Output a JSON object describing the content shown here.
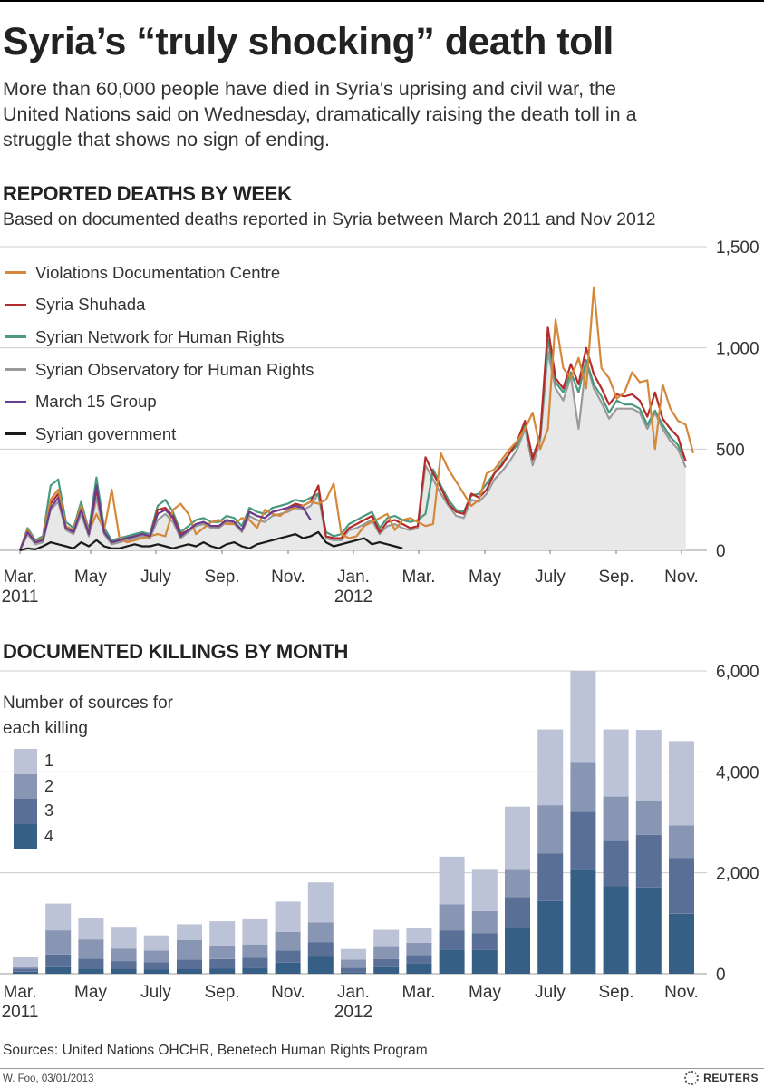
{
  "header": {
    "title": "Syria’s “truly shocking” death toll",
    "subtitle": "More than 60,000 people have died in Syria's uprising and civil war, the United Nations said on Wednesday, dramatically raising the death toll in a struggle that shows no sign of ending."
  },
  "colors": {
    "vdc": "#d4883a",
    "shuhada": "#b52a2a",
    "snhr": "#4a9a7f",
    "sohr": "#9a9a9a",
    "march15": "#6a3d8e",
    "government": "#1a1a1a",
    "fill": "#e8e8e8",
    "src1": "#bcc3d6",
    "src2": "#8896b4",
    "src3": "#5a6f96",
    "src4": "#365f86",
    "grid": "#cccccc"
  },
  "x_ticks": [
    {
      "label": "Mar.",
      "year": "2011"
    },
    {
      "label": "May",
      "year": ""
    },
    {
      "label": "July",
      "year": ""
    },
    {
      "label": "Sep.",
      "year": ""
    },
    {
      "label": "Nov.",
      "year": ""
    },
    {
      "label": "Jan.",
      "year": "2012"
    },
    {
      "label": "Mar.",
      "year": ""
    },
    {
      "label": "May",
      "year": ""
    },
    {
      "label": "July",
      "year": ""
    },
    {
      "label": "Sep.",
      "year": ""
    },
    {
      "label": "Nov.",
      "year": ""
    }
  ],
  "chart_data": [
    {
      "type": "line",
      "title": "REPORTED DEATHS BY WEEK",
      "subtitle": "Based on documented deaths reported in Syria between March 2011 and Nov 2012",
      "x_unit": "week",
      "ylim": [
        0,
        1500
      ],
      "yticks": [
        "1,500",
        "1,000",
        "500",
        "0"
      ],
      "ytick_values": [
        1500,
        1000,
        500,
        0
      ],
      "grid": true,
      "legend_position": "top-left",
      "area_series": "Syrian Observatory for Human Rights",
      "series": [
        {
          "name": "Violations Documentation Centre",
          "color_key": "vdc",
          "values": [
            0,
            100,
            40,
            60,
            250,
            300,
            120,
            100,
            220,
            90,
            180,
            100,
            300,
            60,
            40,
            50,
            60,
            70,
            80,
            70,
            200,
            230,
            180,
            80,
            110,
            140,
            150,
            130,
            130,
            160,
            150,
            110,
            200,
            180,
            170,
            200,
            210,
            220,
            240,
            230,
            250,
            330,
            80,
            60,
            70,
            120,
            140,
            160,
            180,
            100,
            150,
            160,
            140,
            120,
            130,
            480,
            400,
            340,
            280,
            220,
            250,
            380,
            400,
            450,
            500,
            540,
            600,
            680,
            500,
            600,
            1140,
            900,
            850,
            950,
            800,
            1300,
            900,
            850,
            750,
            780,
            880,
            830,
            840,
            500,
            820,
            700,
            640,
            620,
            480
          ]
        },
        {
          "name": "Syria Shuhada",
          "color_key": "shuhada",
          "values": [
            0,
            100,
            40,
            50,
            230,
            280,
            110,
            90,
            210,
            80,
            300,
            90,
            40,
            50,
            60,
            70,
            80,
            70,
            200,
            210,
            170,
            80,
            100,
            130,
            140,
            120,
            120,
            150,
            140,
            100,
            190,
            170,
            160,
            190,
            200,
            210,
            230,
            220,
            240,
            320,
            70,
            60,
            60,
            110,
            130,
            150,
            170,
            90,
            140,
            150,
            130,
            110,
            120,
            460,
            380,
            310,
            230,
            190,
            180,
            280,
            260,
            300,
            380,
            420,
            480,
            540,
            640,
            450,
            570,
            1100,
            850,
            800,
            920,
            820,
            1000,
            870,
            800,
            720,
            770,
            760,
            770,
            740,
            660,
            780,
            650,
            600,
            560,
            440
          ]
        },
        {
          "name": "Syrian Network for Human Rights",
          "color_key": "snhr",
          "values": [
            0,
            110,
            50,
            70,
            320,
            350,
            140,
            110,
            240,
            100,
            360,
            110,
            50,
            60,
            70,
            80,
            90,
            80,
            220,
            250,
            190,
            90,
            120,
            150,
            160,
            140,
            140,
            170,
            160,
            120,
            210,
            190,
            180,
            210,
            220,
            230,
            250,
            240,
            260,
            280,
            90,
            70,
            80,
            130,
            150,
            170,
            190,
            110,
            160,
            170,
            150,
            140,
            150,
            180,
            400,
            320,
            250,
            200,
            190,
            270,
            280,
            330,
            380,
            430,
            480,
            520,
            620,
            460,
            560,
            1040,
            830,
            780,
            880,
            780,
            940,
            820,
            760,
            680,
            740,
            720,
            720,
            700,
            620,
            690,
            620,
            560,
            520,
            440
          ]
        },
        {
          "name": "Syrian Observatory for Human Rights",
          "color_key": "sohr",
          "values": [
            0,
            80,
            30,
            40,
            200,
            240,
            100,
            80,
            180,
            70,
            260,
            80,
            30,
            40,
            50,
            60,
            70,
            60,
            150,
            180,
            140,
            60,
            90,
            120,
            130,
            110,
            110,
            140,
            130,
            90,
            170,
            150,
            140,
            170,
            180,
            190,
            210,
            200,
            220,
            280,
            60,
            50,
            50,
            100,
            110,
            130,
            150,
            80,
            120,
            130,
            110,
            100,
            110,
            420,
            350,
            280,
            220,
            170,
            160,
            250,
            240,
            280,
            350,
            390,
            440,
            500,
            600,
            420,
            540,
            980,
            800,
            740,
            860,
            600,
            930,
            800,
            730,
            650,
            700,
            700,
            700,
            680,
            600,
            680,
            600,
            540,
            500,
            410
          ]
        },
        {
          "name": "March 15 Group",
          "color_key": "march15",
          "values": [
            0,
            90,
            40,
            50,
            210,
            260,
            110,
            90,
            200,
            80,
            320,
            90,
            40,
            50,
            60,
            70,
            80,
            70,
            180,
            200,
            160,
            70,
            100,
            130,
            140,
            120,
            120,
            150,
            140,
            100,
            190,
            170,
            160,
            190,
            200,
            210,
            220,
            210,
            150
          ]
        },
        {
          "name": "Syrian government",
          "color_key": "government",
          "values": [
            0,
            10,
            5,
            20,
            40,
            30,
            20,
            10,
            40,
            20,
            50,
            20,
            10,
            10,
            20,
            30,
            20,
            20,
            30,
            20,
            10,
            20,
            30,
            20,
            40,
            20,
            10,
            30,
            40,
            20,
            10,
            30,
            40,
            50,
            60,
            70,
            80,
            60,
            70,
            90,
            40,
            20,
            30,
            40,
            50,
            60,
            30,
            40,
            30,
            20,
            10
          ]
        }
      ]
    },
    {
      "type": "bar",
      "stacked": true,
      "title": "DOCUMENTED KILLINGS BY MONTH",
      "legend_title": "Number of sources for each killing",
      "ylim": [
        0,
        6000
      ],
      "yticks": [
        "6,000",
        "4,000",
        "2,000",
        "0"
      ],
      "ytick_values": [
        6000,
        4000,
        2000,
        0
      ],
      "grid": true,
      "legend_position": "top-left",
      "categories": [
        "Mar. 2011",
        "Apr. 2011",
        "May 2011",
        "Jun. 2011",
        "Jul. 2011",
        "Aug. 2011",
        "Sep. 2011",
        "Oct. 2011",
        "Nov. 2011",
        "Dec. 2011",
        "Jan. 2012",
        "Feb. 2012",
        "Mar. 2012",
        "Apr. 2012",
        "May 2012",
        "Jun. 2012",
        "Jul. 2012",
        "Aug. 2012",
        "Sep. 2012",
        "Oct. 2012",
        "Nov. 2012"
      ],
      "series": [
        {
          "name": "4",
          "color_key": "src4",
          "values": [
            40,
            150,
            100,
            90,
            80,
            90,
            100,
            120,
            220,
            350,
            20,
            150,
            210,
            480,
            470,
            930,
            1440,
            2060,
            1740,
            1710,
            1190
          ]
        },
        {
          "name": "3",
          "color_key": "src3",
          "values": [
            60,
            230,
            200,
            160,
            150,
            190,
            190,
            200,
            240,
            270,
            100,
            140,
            160,
            380,
            330,
            590,
            940,
            1150,
            890,
            1040,
            1100
          ]
        },
        {
          "name": "2",
          "color_key": "src2",
          "values": [
            40,
            480,
            380,
            250,
            230,
            390,
            270,
            260,
            370,
            400,
            160,
            260,
            240,
            520,
            440,
            540,
            960,
            990,
            880,
            670,
            650
          ]
        },
        {
          "name": "1",
          "color_key": "src1",
          "values": [
            190,
            530,
            420,
            430,
            300,
            310,
            480,
            500,
            600,
            790,
            210,
            320,
            290,
            940,
            820,
            1250,
            1500,
            1800,
            1330,
            1410,
            1670
          ]
        }
      ]
    }
  ],
  "footer": {
    "sources": "Sources: United Nations OHCHR, Benetech Human Rights Program",
    "credit": "W. Foo, 03/01/2013",
    "brand": "REUTERS"
  }
}
